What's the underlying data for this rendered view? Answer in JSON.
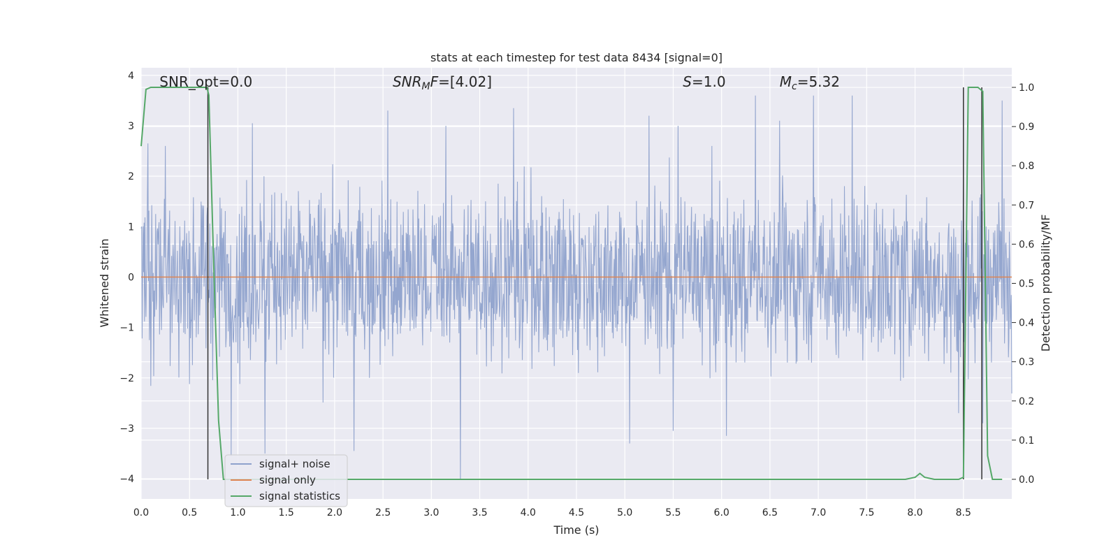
{
  "chart_data": {
    "type": "line",
    "title": "stats at each timestep for test data 8434 [signal=0]",
    "xlabel": "Time (s)",
    "ylabel": "Whitened strain",
    "y2label": "Detection probability/MF",
    "xlim": [
      0.0,
      9.0
    ],
    "ylim": [
      -4.4,
      4.15
    ],
    "y2lim": [
      -0.05,
      1.05
    ],
    "xticks": [
      0.0,
      0.5,
      1.0,
      1.5,
      2.0,
      2.5,
      3.0,
      3.5,
      4.0,
      4.5,
      5.0,
      5.5,
      6.0,
      6.5,
      7.0,
      7.5,
      8.0,
      8.5
    ],
    "xtick_labels": [
      "0.0",
      "0.5",
      "1.0",
      "1.5",
      "2.0",
      "2.5",
      "3.0",
      "3.5",
      "4.0",
      "4.5",
      "5.0",
      "5.5",
      "6.0",
      "6.5",
      "7.0",
      "7.5",
      "8.0",
      "8.5"
    ],
    "yticks": [
      4,
      3,
      2,
      1,
      0,
      -1,
      -2,
      -3,
      -4
    ],
    "ytick_labels": [
      "4",
      "3",
      "2",
      "1",
      "0",
      "−1",
      "−2",
      "−3",
      "−4"
    ],
    "y2ticks": [
      1.0,
      0.9,
      0.8,
      0.7,
      0.6,
      0.5,
      0.4,
      0.3,
      0.2,
      0.1,
      0.0
    ],
    "y2tick_labels": [
      "1.0",
      "0.9",
      "0.8",
      "0.7",
      "0.6",
      "0.5",
      "0.4",
      "0.3",
      "0.2",
      "0.1",
      "0.0"
    ],
    "grid": true,
    "legend_position": "bottom-left",
    "annotations": [
      {
        "text": "SNR_opt=0.0",
        "x": 0.19
      },
      {
        "text": "SNRMF=[4.02]",
        "x": 2.6
      },
      {
        "text": "S=1.0",
        "x": 5.6
      },
      {
        "text": "Mc=5.32",
        "x": 6.6
      }
    ],
    "series": [
      {
        "name": "signal+ noise",
        "color": "#8fa2cc",
        "axis": "left",
        "description": "whitened noise, amplitude mostly within ±2, peaks to about ±3.8",
        "envelope_upper_typical": 2.0,
        "envelope_lower_typical": -2.0,
        "spikes": [
          [
            0.07,
            2.65
          ],
          [
            0.25,
            2.6
          ],
          [
            0.68,
            1.2
          ],
          [
            1.15,
            3.05
          ],
          [
            2.55,
            3.3
          ],
          [
            3.15,
            3.0
          ],
          [
            3.85,
            3.35
          ],
          [
            5.25,
            3.2
          ],
          [
            5.55,
            3.0
          ],
          [
            6.05,
            3.05
          ],
          [
            6.35,
            3.6
          ],
          [
            6.6,
            3.1
          ],
          [
            6.95,
            3.6
          ],
          [
            7.35,
            3.6
          ],
          [
            8.5,
            2.65
          ],
          [
            8.9,
            3.5
          ],
          [
            0.93,
            -3.55
          ],
          [
            1.28,
            -3.5
          ],
          [
            2.2,
            -3.45
          ],
          [
            3.3,
            -4.0
          ],
          [
            5.5,
            -3.05
          ],
          [
            5.05,
            -3.3
          ],
          [
            6.05,
            -3.15
          ],
          [
            8.45,
            -2.7
          ],
          [
            8.7,
            -2.9
          ]
        ]
      },
      {
        "name": "signal only",
        "color": "#dd8452",
        "axis": "left",
        "x": [
          0.0,
          9.0
        ],
        "y": [
          0.0,
          0.0
        ]
      },
      {
        "name": "signal statistics",
        "color": "#55a868",
        "axis": "right",
        "x": [
          0.0,
          0.05,
          0.1,
          0.2,
          0.3,
          0.4,
          0.5,
          0.6,
          0.68,
          0.7,
          0.75,
          0.8,
          0.85,
          1.0,
          2.0,
          3.0,
          4.0,
          5.0,
          6.0,
          7.0,
          7.9,
          8.0,
          8.05,
          8.1,
          8.2,
          8.3,
          8.45,
          8.5,
          8.55,
          8.6,
          8.65,
          8.7,
          8.75,
          8.8,
          8.9
        ],
        "y": [
          0.85,
          0.995,
          1.0,
          1.0,
          1.0,
          1.0,
          1.0,
          1.0,
          1.0,
          0.98,
          0.55,
          0.15,
          0.0,
          0.0,
          0.0,
          0.0,
          0.0,
          0.0,
          0.0,
          0.0,
          0.0,
          0.005,
          0.015,
          0.005,
          0.0,
          0.0,
          0.0,
          0.005,
          1.0,
          1.0,
          1.0,
          0.99,
          0.06,
          0.0,
          0.0
        ]
      }
    ],
    "vertical_markers": [
      {
        "x": 0.69,
        "y_top": 1.0,
        "y_bottom": 0.0,
        "color": "#333333",
        "axis": "right"
      },
      {
        "x": 8.5,
        "y_top": 1.0,
        "y_bottom": 0.0,
        "color": "#333333",
        "axis": "right"
      },
      {
        "x": 8.69,
        "y_top": 1.0,
        "y_bottom": 0.0,
        "color": "#333333",
        "axis": "right"
      }
    ]
  }
}
